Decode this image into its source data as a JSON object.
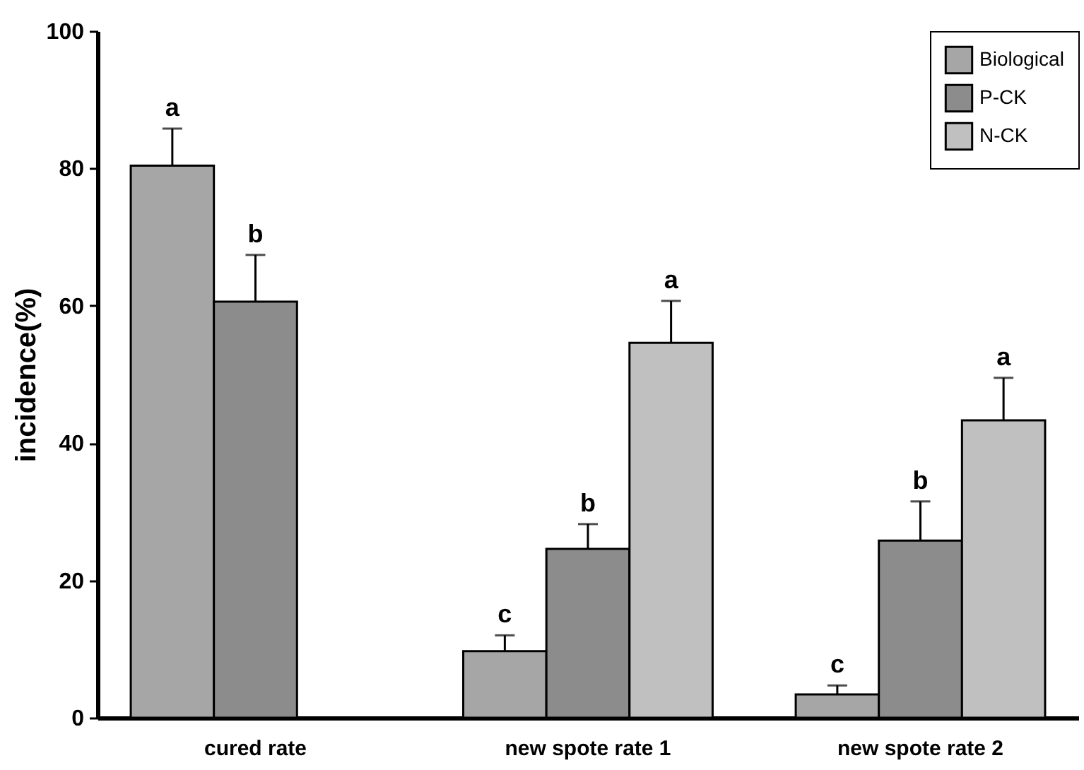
{
  "chart_data": {
    "type": "bar",
    "ylabel": "incidence(%)",
    "categories": [
      "cured rate",
      "new spote rate 1",
      "new spote rate 2"
    ],
    "series": [
      {
        "name": "Biological",
        "color": "#a6a6a6",
        "values": [
          80.4,
          9.7,
          3.4
        ],
        "value_labels": [
          "a",
          "c",
          "c"
        ],
        "errors": [
          [
            80.4,
            85.8
          ],
          [
            9.7,
            12.0
          ],
          [
            3.4,
            4.7
          ]
        ]
      },
      {
        "name": "P-CK",
        "color": "#8c8c8c",
        "values": [
          60.6,
          24.6,
          25.8
        ],
        "value_labels": [
          "b",
          "b",
          "b"
        ],
        "errors": [
          [
            60.6,
            67.4
          ],
          [
            24.6,
            28.2
          ],
          [
            25.8,
            31.5
          ]
        ]
      },
      {
        "name": "N-CK",
        "color": "#c0c0c0",
        "values": [
          null,
          54.6,
          43.3
        ],
        "value_labels": [
          null,
          "a",
          "a"
        ],
        "errors": [
          null,
          [
            54.6,
            60.7
          ],
          [
            43.3,
            49.5
          ]
        ]
      }
    ],
    "ylim": [
      0,
      100
    ],
    "yticks": [
      0,
      20,
      40,
      60,
      80,
      100
    ],
    "grid": false,
    "legend": "top right"
  }
}
